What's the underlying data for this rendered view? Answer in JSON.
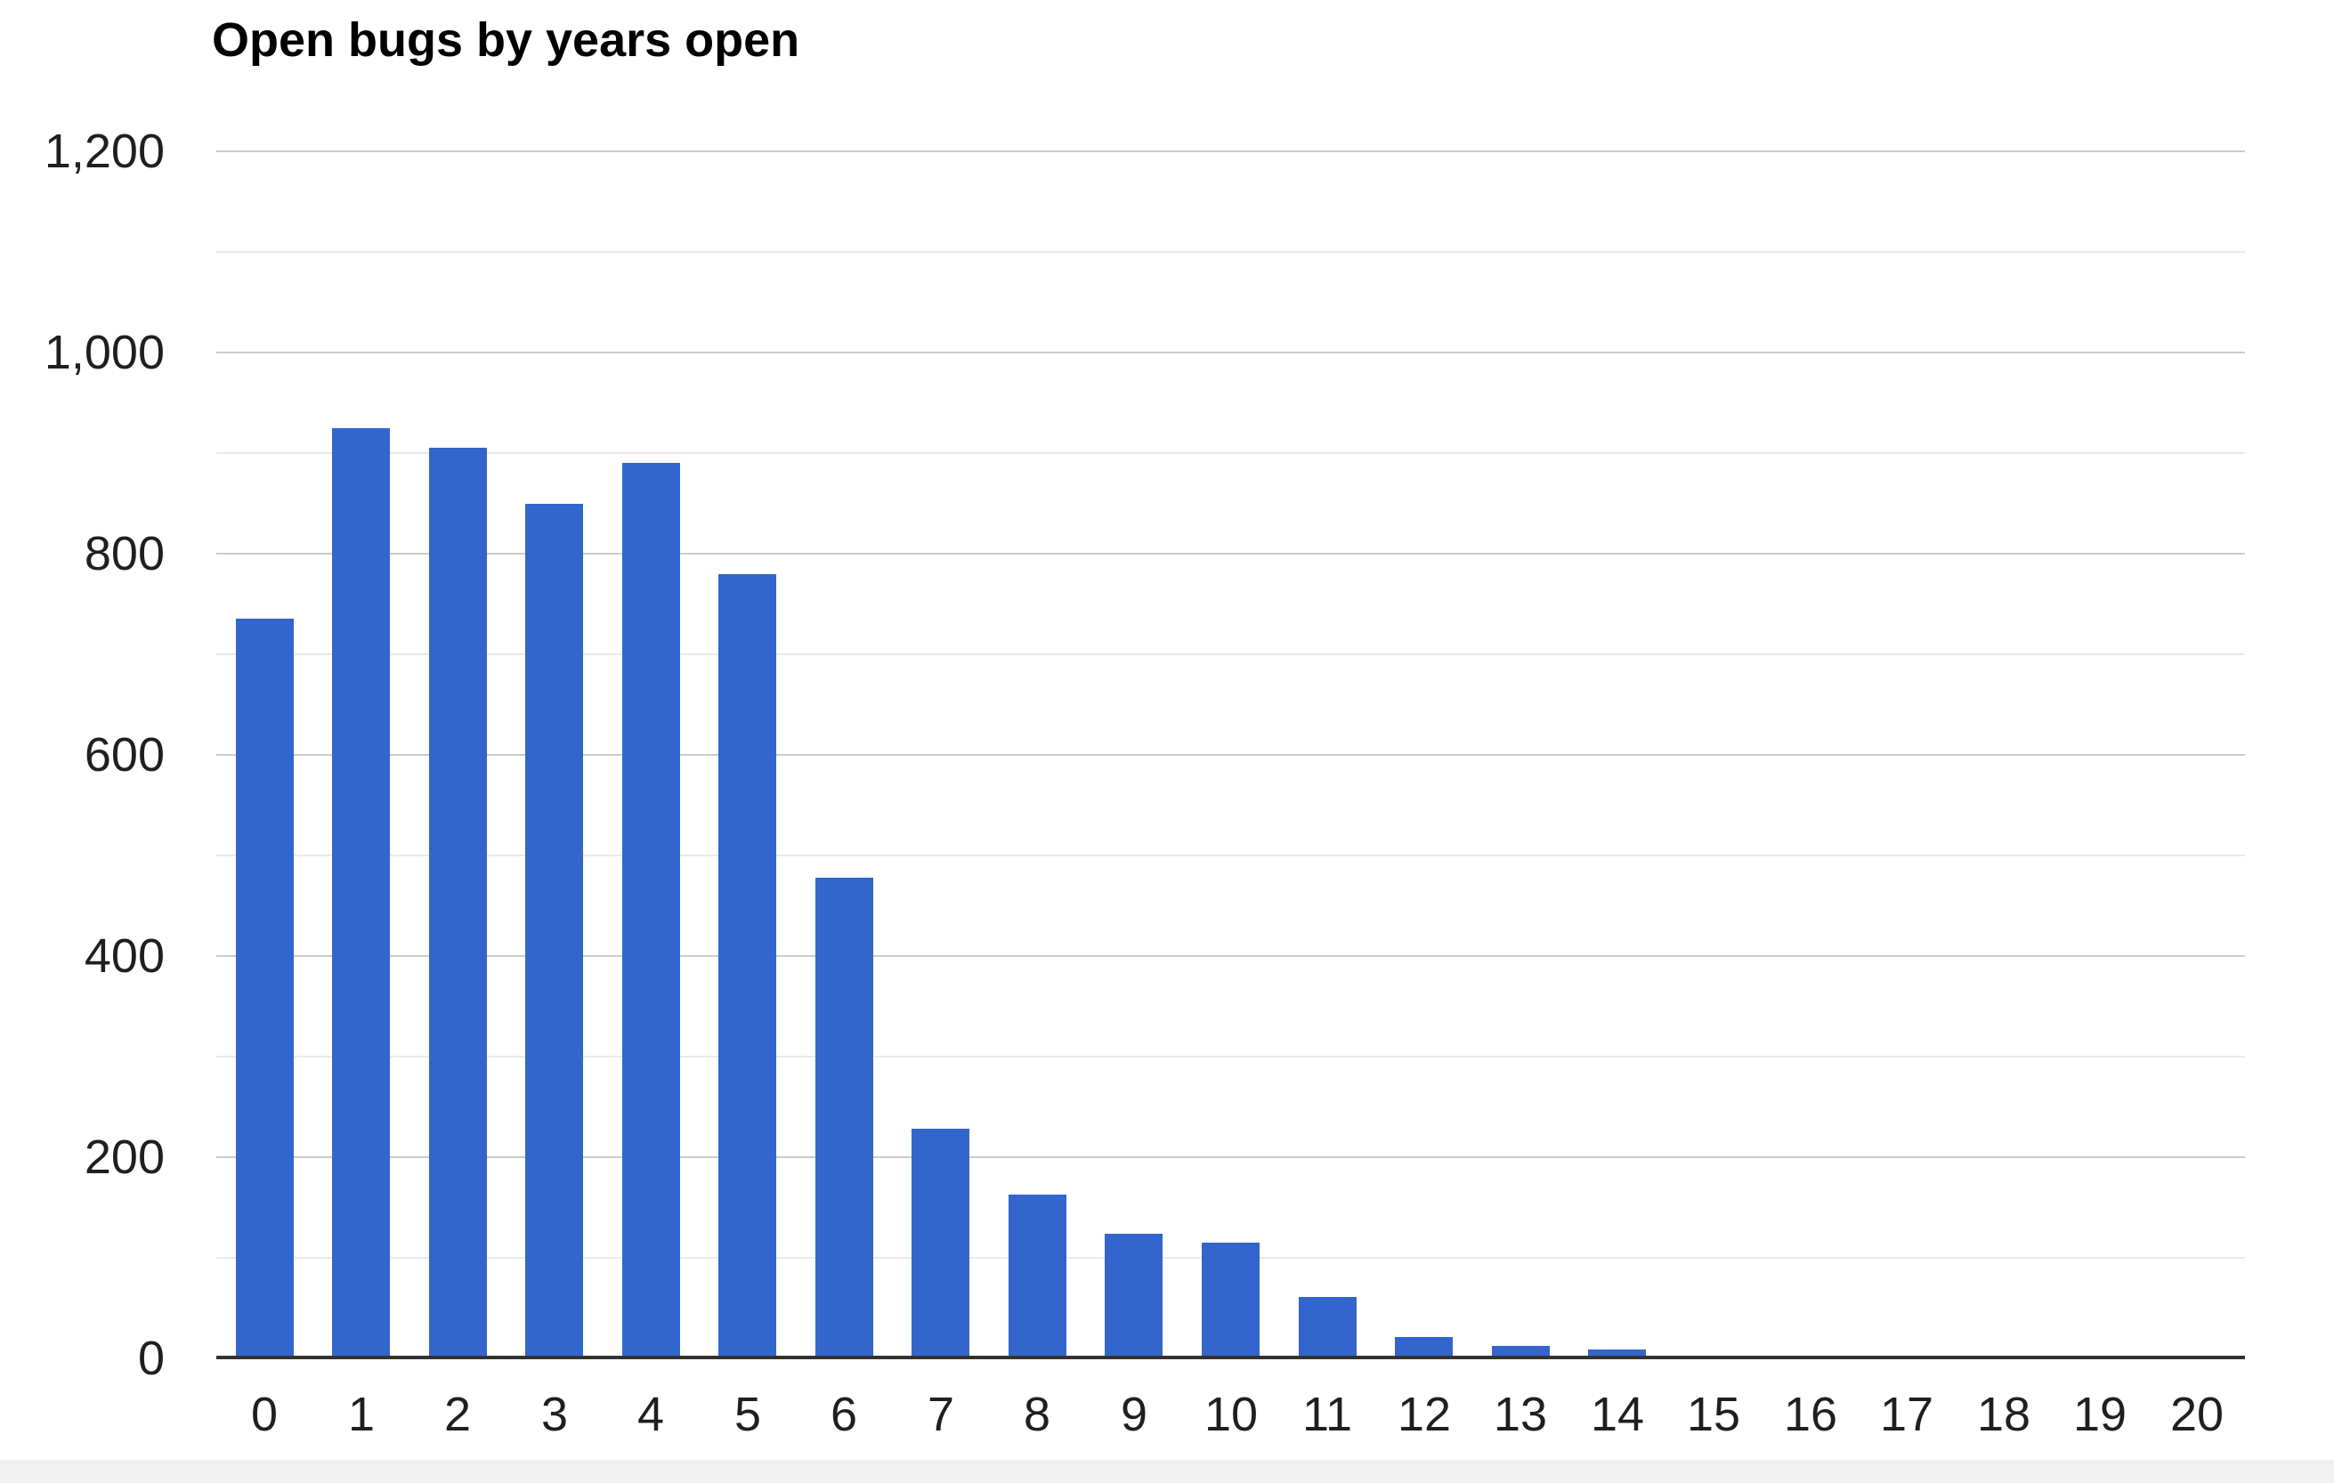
{
  "page": {
    "background": "#ffffff",
    "footer_strip_color": "#f1f1f2"
  },
  "chart_data": {
    "type": "bar",
    "title": "Open bugs by years open",
    "title_color": "#000000",
    "categories": [
      "0",
      "1",
      "2",
      "3",
      "4",
      "5",
      "6",
      "7",
      "8",
      "9",
      "10",
      "11",
      "12",
      "13",
      "14",
      "15",
      "16",
      "17",
      "18",
      "19",
      "20"
    ],
    "values": [
      735,
      925,
      905,
      850,
      890,
      780,
      478,
      228,
      163,
      124,
      115,
      61,
      21,
      12,
      9,
      1,
      3,
      2,
      3,
      2,
      2
    ],
    "series_name": "Open bugs",
    "bar_color": "#3366cc",
    "xlabel": "",
    "ylabel": "",
    "ylim": [
      0,
      1200
    ],
    "y_major_ticks": [
      0,
      200,
      400,
      600,
      800,
      1000,
      1200
    ],
    "y_tick_labels": [
      "0",
      "200",
      "400",
      "600",
      "800",
      "1,000",
      "1,200"
    ],
    "y_minor_ticks": [
      100,
      300,
      500,
      700,
      900,
      1100
    ],
    "grid": true,
    "legend_position": "none",
    "axis_text_color": "#1f1f1f",
    "major_grid_color": "#cccccc",
    "minor_grid_color": "#ebebeb",
    "baseline_color": "#333333"
  }
}
